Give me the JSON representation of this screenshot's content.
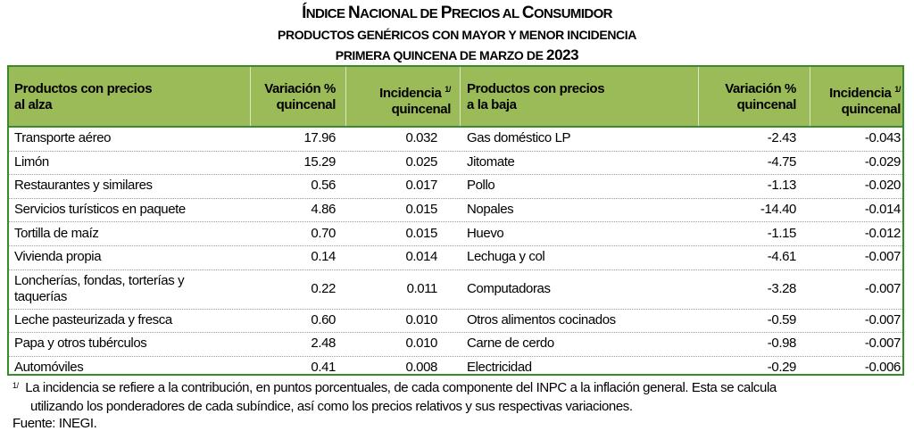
{
  "title": {
    "first_letters": [
      "Í",
      "N",
      "N",
      "P",
      "A",
      "C"
    ],
    "parts": [
      "Í",
      "NDICE ",
      "N",
      "ACIONAL DE ",
      "P",
      "RECIOS AL ",
      "C",
      "ONSUMIDOR"
    ],
    "full": "Índice Nacional de Precios al Consumidor"
  },
  "subtitle": "PRODUCTOS GENÉRICOS CON MAYOR Y MENOR INCIDENCIA",
  "period": {
    "text": "PRIMERA QUINCENA DE MARZO DE ",
    "year": "2023"
  },
  "headers": {
    "up_product_1": "Productos con precios",
    "up_product_2": "al alza",
    "variation_1": "Variación %",
    "variation_2": "quincenal",
    "incidence_1": "Incidencia",
    "incidence_sup": "1/",
    "incidence_2": "quincenal",
    "down_product_1": "Productos con precios",
    "down_product_2": "a la baja"
  },
  "rows": [
    {
      "up": "Transporte aéreo",
      "up_var": "17.96",
      "up_inc": "0.032",
      "down": "Gas doméstico LP",
      "down_var": "-2.43",
      "down_inc": "-0.043"
    },
    {
      "up": "Limón",
      "up_var": "15.29",
      "up_inc": "0.025",
      "down": "Jitomate",
      "down_var": "-4.75",
      "down_inc": "-0.029"
    },
    {
      "up": "Restaurantes y similares",
      "up_var": "0.56",
      "up_inc": "0.017",
      "down": "Pollo",
      "down_var": "-1.13",
      "down_inc": "-0.020"
    },
    {
      "up": "Servicios turísticos en paquete",
      "up_var": "4.86",
      "up_inc": "0.015",
      "down": "Nopales",
      "down_var": "-14.40",
      "down_inc": "-0.014"
    },
    {
      "up": "Tortilla de maíz",
      "up_var": "0.70",
      "up_inc": "0.015",
      "down": "Huevo",
      "down_var": "-1.15",
      "down_inc": "-0.012"
    },
    {
      "up": "Vivienda propia",
      "up_var": "0.14",
      "up_inc": "0.014",
      "down": "Lechuga y col",
      "down_var": "-4.61",
      "down_inc": "-0.007"
    },
    {
      "up": "Loncherías, fondas, torterías y taquerías",
      "up_var": "0.22",
      "up_inc": "0.011",
      "down": "Computadoras",
      "down_var": "-3.28",
      "down_inc": "-0.007"
    },
    {
      "up": "Leche pasteurizada y fresca",
      "up_var": "0.60",
      "up_inc": "0.010",
      "down": "Otros alimentos cocinados",
      "down_var": "-0.59",
      "down_inc": "-0.007"
    },
    {
      "up": "Papa y otros tubérculos",
      "up_var": "2.48",
      "up_inc": "0.010",
      "down": "Carne de cerdo",
      "down_var": "-0.98",
      "down_inc": "-0.007"
    },
    {
      "up": "Automóviles",
      "up_var": "0.41",
      "up_inc": "0.008",
      "down": "Electricidad",
      "down_var": "-0.29",
      "down_inc": "-0.006"
    }
  ],
  "footnote": {
    "mark": "1/",
    "line1": "La incidencia se refiere a la contribución, en puntos porcentuales, de cada componente del INPC a la inflación general. Esta se calcula",
    "line2": "utilizando los ponderadores de cada subíndice, así como los precios relativos y sus respectivas variaciones."
  },
  "source": "Fuente: INEGI."
}
